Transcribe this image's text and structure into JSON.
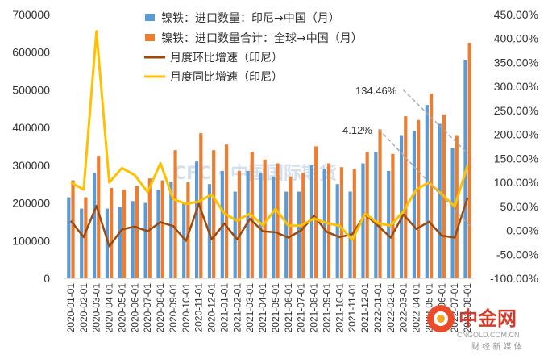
{
  "chart_data": {
    "type": "bar",
    "categories": [
      "2020-01-01",
      "2020-02-01",
      "2020-03-01",
      "2020-04-01",
      "2020-05-01",
      "2020-06-01",
      "2020-07-01",
      "2020-08-01",
      "2020-09-01",
      "2020-10-01",
      "2020-11-01",
      "2020-12-01",
      "2021-01-01",
      "2021-02-01",
      "2021-03-01",
      "2021-04-01",
      "2021-05-01",
      "2021-06-01",
      "2021-07-01",
      "2021-08-01",
      "2021-09-01",
      "2021-10-01",
      "2021-11-01",
      "2021-12-01",
      "2022-01-01",
      "2022-02-01",
      "2022-03-01",
      "2022-04-01",
      "2022-05-01",
      "2022-06-01",
      "2022-07-01",
      "2022-08-01"
    ],
    "y_left": {
      "ylim": [
        0,
        700000
      ],
      "ticks": [
        "0",
        "100000",
        "200000",
        "300000",
        "400000",
        "500000",
        "600000",
        "700000"
      ]
    },
    "y_right": {
      "ylim": [
        -100,
        450
      ],
      "ticks": [
        "-100.00%",
        "-50.00%",
        "0.00%",
        "50.00%",
        "100.00%",
        "150.00%",
        "200.00%",
        "250.00%",
        "300.00%",
        "350.00%",
        "400.00%",
        "450.00%"
      ]
    },
    "series": [
      {
        "name": "镍铁：进口数量：印尼→中国（月）",
        "type": "bar",
        "axis": "left",
        "color": "#5b9bd5",
        "values": [
          215000,
          185000,
          280000,
          185000,
          190000,
          205000,
          200000,
          235000,
          255000,
          200000,
          310000,
          250000,
          285000,
          230000,
          285000,
          280000,
          270000,
          230000,
          230000,
          300000,
          290000,
          250000,
          230000,
          305000,
          335000,
          285000,
          380000,
          390000,
          460000,
          410000,
          345000,
          580000
        ]
      },
      {
        "name": "镍铁：进口数量合计：全球→中国（月）",
        "type": "bar",
        "axis": "left",
        "color": "#ed7d31",
        "values": [
          260000,
          215000,
          325000,
          240000,
          235000,
          245000,
          265000,
          260000,
          340000,
          255000,
          385000,
          340000,
          355000,
          285000,
          335000,
          315000,
          305000,
          270000,
          280000,
          350000,
          305000,
          295000,
          290000,
          335000,
          395000,
          330000,
          430000,
          420000,
          490000,
          435000,
          380000,
          625000
        ]
      },
      {
        "name": "月度环比增速（印尼）",
        "type": "line",
        "axis": "right",
        "color": "#9c4a0e",
        "values": [
          20,
          -14,
          51,
          -33,
          2,
          8,
          -2,
          17,
          9,
          -22,
          55,
          -19,
          14,
          -19,
          24,
          -2,
          -4,
          -15,
          0,
          30,
          -3,
          -14,
          -8,
          33,
          10,
          -15,
          33,
          3,
          18,
          -11,
          -15,
          68
        ]
      },
      {
        "name": "月度同比增速（印尼）",
        "type": "line",
        "axis": "right",
        "color": "#ffc000",
        "values": [
          100,
          85,
          415,
          100,
          130,
          115,
          80,
          140,
          65,
          55,
          60,
          75,
          35,
          20,
          35,
          10,
          45,
          10,
          10,
          25,
          15,
          10,
          -20,
          35,
          15,
          10,
          40,
          85,
          100,
          75,
          50,
          135
        ]
      }
    ],
    "annotations": [
      "134.46%",
      "4.12%"
    ],
    "legend_position": "top-center",
    "grid": false
  },
  "watermark": "CFC · 中国国际期货",
  "logo": {
    "name": "中金网",
    "url": "CNGOLD.COM.CN",
    "tagline": "财 经 新 媒 体"
  }
}
